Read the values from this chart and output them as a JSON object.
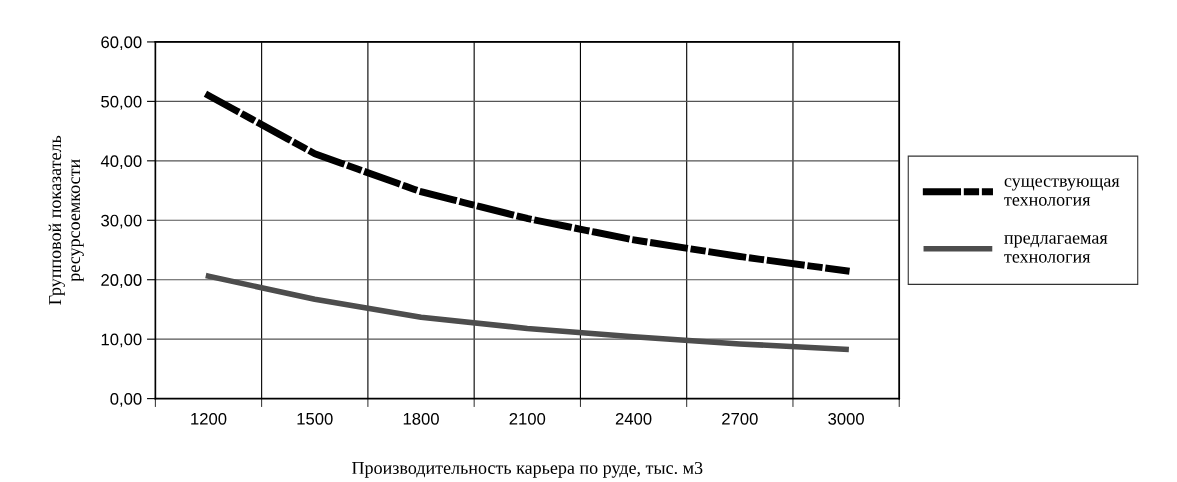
{
  "chart_data": {
    "type": "line",
    "xlabel": "Производительность карьера по руде, тыс. м3",
    "ylabel": "Групповой показатель\nресурсоемкости",
    "categories": [
      "1200",
      "1500",
      "1800",
      "2100",
      "2400",
      "2700",
      "3000"
    ],
    "series": [
      {
        "name": "существующая\nтехнология",
        "color": "#000000",
        "line_style": "dashed",
        "values": [
          51.0,
          41.2,
          34.8,
          30.3,
          26.7,
          23.9,
          21.5
        ]
      },
      {
        "name": "предлагаемая\nтехнология",
        "color": "#4d4d4d",
        "line_style": "solid",
        "values": [
          20.6,
          16.7,
          13.7,
          11.8,
          10.4,
          9.2,
          8.3
        ]
      }
    ],
    "ylim": [
      0,
      60
    ],
    "yticks": [
      {
        "value": 0,
        "label": "0,00"
      },
      {
        "value": 10,
        "label": "10,00"
      },
      {
        "value": 20,
        "label": "20,00"
      },
      {
        "value": 30,
        "label": "30,00"
      },
      {
        "value": 40,
        "label": "40,00"
      },
      {
        "value": 50,
        "label": "50,00"
      },
      {
        "value": 60,
        "label": "60,00"
      }
    ],
    "grid": true,
    "legend": "right",
    "marker": "none"
  }
}
